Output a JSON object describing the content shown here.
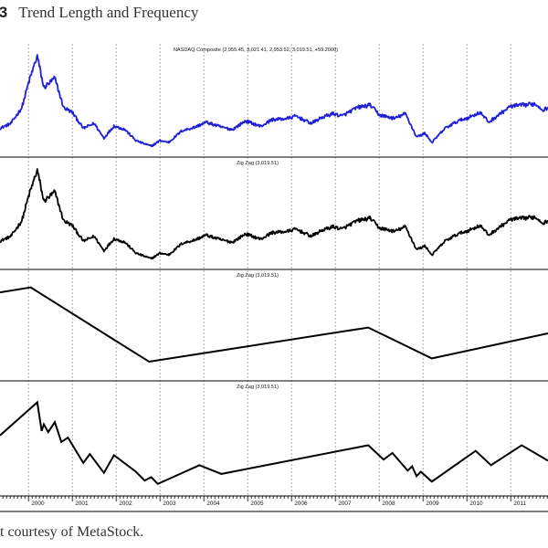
{
  "figure": {
    "number": ".3",
    "title": "Trend Length and Frequency",
    "credit": "t courtesy of MetaStock."
  },
  "chart_data": {
    "type": "line",
    "x_ticks": [
      "2000",
      "2001",
      "2002",
      "2003",
      "2004",
      "2005",
      "2006",
      "2007",
      "2008",
      "2009",
      "2010",
      "2011"
    ],
    "x_range": [
      1999.35,
      2011.85
    ],
    "panels": [
      {
        "title": "NASDAQ Composite (2,955.45, 3,021.41, 2,953.52, 3,019.51, +59.2000)",
        "color": "#1f1fd6",
        "style": "price",
        "points": [
          [
            1999.35,
            1850
          ],
          [
            1999.6,
            2050
          ],
          [
            1999.85,
            2700
          ],
          [
            2000.0,
            3700
          ],
          [
            2000.2,
            4800
          ],
          [
            2000.35,
            3500
          ],
          [
            2000.6,
            3900
          ],
          [
            2000.8,
            2700
          ],
          [
            2001.0,
            2500
          ],
          [
            2001.25,
            1850
          ],
          [
            2001.5,
            2050
          ],
          [
            2001.72,
            1450
          ],
          [
            2001.95,
            1950
          ],
          [
            2002.2,
            1800
          ],
          [
            2002.45,
            1350
          ],
          [
            2002.6,
            1250
          ],
          [
            2002.8,
            1120
          ],
          [
            2003.0,
            1350
          ],
          [
            2003.2,
            1280
          ],
          [
            2003.5,
            1750
          ],
          [
            2003.8,
            1900
          ],
          [
            2004.05,
            2100
          ],
          [
            2004.4,
            1900
          ],
          [
            2004.65,
            1800
          ],
          [
            2004.95,
            2150
          ],
          [
            2005.3,
            1930
          ],
          [
            2005.55,
            2200
          ],
          [
            2005.9,
            2250
          ],
          [
            2006.1,
            2350
          ],
          [
            2006.45,
            2050
          ],
          [
            2006.7,
            2300
          ],
          [
            2006.95,
            2450
          ],
          [
            2007.15,
            2350
          ],
          [
            2007.5,
            2700
          ],
          [
            2007.8,
            2800
          ],
          [
            2008.0,
            2400
          ],
          [
            2008.35,
            2250
          ],
          [
            2008.6,
            2450
          ],
          [
            2008.85,
            1500
          ],
          [
            2009.05,
            1650
          ],
          [
            2009.2,
            1270
          ],
          [
            2009.5,
            1850
          ],
          [
            2009.8,
            2150
          ],
          [
            2010.05,
            2300
          ],
          [
            2010.3,
            2500
          ],
          [
            2010.5,
            2100
          ],
          [
            2010.8,
            2500
          ],
          [
            2011.0,
            2750
          ],
          [
            2011.3,
            2800
          ],
          [
            2011.55,
            2850
          ],
          [
            2011.75,
            2600
          ],
          [
            2011.85,
            2700
          ]
        ],
        "ylim": [
          900,
          5000
        ]
      },
      {
        "title": "Zig Zag (3,019.51)",
        "color": "#000000",
        "style": "price",
        "points": [
          [
            1999.35,
            1850
          ],
          [
            1999.6,
            2050
          ],
          [
            1999.85,
            2700
          ],
          [
            2000.0,
            3700
          ],
          [
            2000.2,
            4800
          ],
          [
            2000.35,
            3500
          ],
          [
            2000.6,
            3900
          ],
          [
            2000.8,
            2700
          ],
          [
            2001.0,
            2500
          ],
          [
            2001.25,
            1850
          ],
          [
            2001.5,
            2050
          ],
          [
            2001.72,
            1450
          ],
          [
            2001.95,
            1950
          ],
          [
            2002.2,
            1800
          ],
          [
            2002.45,
            1350
          ],
          [
            2002.6,
            1250
          ],
          [
            2002.8,
            1120
          ],
          [
            2003.0,
            1350
          ],
          [
            2003.2,
            1280
          ],
          [
            2003.5,
            1750
          ],
          [
            2003.8,
            1900
          ],
          [
            2004.05,
            2100
          ],
          [
            2004.4,
            1900
          ],
          [
            2004.65,
            1800
          ],
          [
            2004.95,
            2150
          ],
          [
            2005.3,
            1930
          ],
          [
            2005.55,
            2200
          ],
          [
            2005.9,
            2250
          ],
          [
            2006.1,
            2350
          ],
          [
            2006.45,
            2050
          ],
          [
            2006.7,
            2300
          ],
          [
            2006.95,
            2450
          ],
          [
            2007.15,
            2350
          ],
          [
            2007.5,
            2700
          ],
          [
            2007.8,
            2800
          ],
          [
            2008.0,
            2400
          ],
          [
            2008.35,
            2250
          ],
          [
            2008.6,
            2450
          ],
          [
            2008.85,
            1500
          ],
          [
            2009.05,
            1650
          ],
          [
            2009.2,
            1270
          ],
          [
            2009.5,
            1850
          ],
          [
            2009.8,
            2150
          ],
          [
            2010.05,
            2300
          ],
          [
            2010.3,
            2500
          ],
          [
            2010.5,
            2100
          ],
          [
            2010.8,
            2500
          ],
          [
            2011.0,
            2750
          ],
          [
            2011.3,
            2800
          ],
          [
            2011.55,
            2850
          ],
          [
            2011.75,
            2600
          ],
          [
            2011.85,
            2700
          ]
        ],
        "ylim": [
          900,
          5000
        ]
      },
      {
        "title": "Zig Zag (3,019.51)",
        "color": "#000000",
        "style": "zigzag",
        "points": [
          [
            1999.35,
            4650
          ],
          [
            2000.05,
            4900
          ],
          [
            2002.75,
            1100
          ],
          [
            2007.75,
            2850
          ],
          [
            2009.2,
            1270
          ],
          [
            2011.85,
            2550
          ]
        ],
        "ylim": [
          400,
          5400
        ]
      },
      {
        "title": "Zig Zag (3,019.51)",
        "color": "#000000",
        "style": "zigzag",
        "points": [
          [
            1999.35,
            3300
          ],
          [
            2000.2,
            4800
          ],
          [
            2000.3,
            3500
          ],
          [
            2000.35,
            3800
          ],
          [
            2000.45,
            3450
          ],
          [
            2000.6,
            3900
          ],
          [
            2000.75,
            3000
          ],
          [
            2000.9,
            3200
          ],
          [
            2001.25,
            2050
          ],
          [
            2001.4,
            2450
          ],
          [
            2001.72,
            1600
          ],
          [
            2001.95,
            2400
          ],
          [
            2002.45,
            1650
          ],
          [
            2002.65,
            1250
          ],
          [
            2002.8,
            1400
          ],
          [
            2002.95,
            1100
          ],
          [
            2003.9,
            1950
          ],
          [
            2004.4,
            1550
          ],
          [
            2007.75,
            2850
          ],
          [
            2008.1,
            2200
          ],
          [
            2008.3,
            2500
          ],
          [
            2008.65,
            1700
          ],
          [
            2008.75,
            1900
          ],
          [
            2008.85,
            1450
          ],
          [
            2008.95,
            1650
          ],
          [
            2009.2,
            1200
          ],
          [
            2010.2,
            2600
          ],
          [
            2010.55,
            1950
          ],
          [
            2011.25,
            2850
          ],
          [
            2011.85,
            2150
          ]
        ],
        "ylim": [
          800,
          5400
        ]
      }
    ]
  }
}
